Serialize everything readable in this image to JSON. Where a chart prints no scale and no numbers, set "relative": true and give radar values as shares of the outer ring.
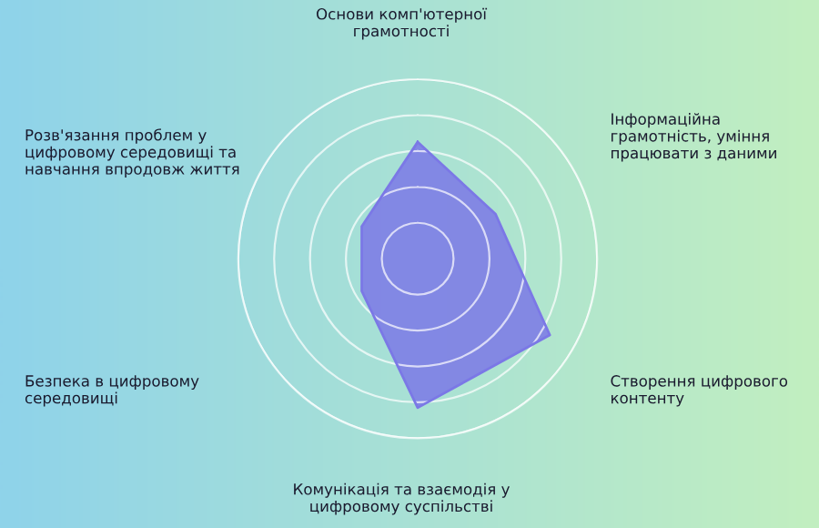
{
  "chart_data": {
    "type": "radar",
    "relative": true,
    "categories": [
      "Основи комп'ютерної грамотності",
      "Інформаційна грамотність, уміння працювати з даними",
      "Створення цифрового контенту",
      "Комунікація та взаємодія у цифровому суспільстві",
      "Безпека в цифровому середовищі",
      "Розв'язання проблем у цифровому середовищі та навчання впродовж життя"
    ],
    "series": [
      {
        "color": "#7b78e6",
        "values": [
          0.65,
          0.5,
          0.85,
          0.83,
          0.36,
          0.36
        ]
      }
    ],
    "grid": true
  }
}
